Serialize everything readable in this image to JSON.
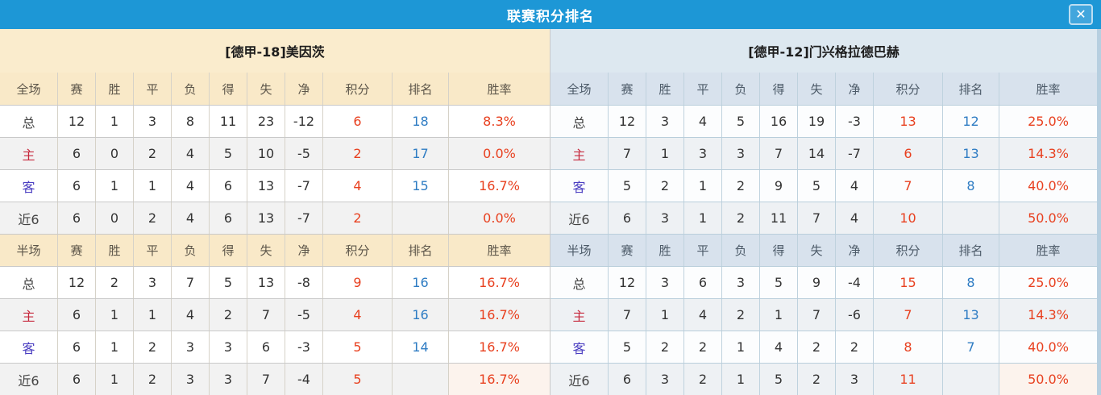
{
  "title_bar": {
    "title": "联赛积分排名",
    "close_icon": "✕"
  },
  "colors": {
    "titlebar_blue": "#1d97d6",
    "left_theme_cream": "#faeccd",
    "right_theme_blue": "#dde8f0",
    "points_red": "#e8401f",
    "rank_blue": "#2e7cc3",
    "home_label_red": "#c6283c",
    "away_label_blue": "#4a3ec1",
    "right_edge_strip": "#b7cfe0"
  },
  "tables": [
    {
      "team_header": "[德甲-18]美因茨",
      "sections": [
        {
          "header": [
            "全场",
            "赛",
            "胜",
            "平",
            "负",
            "得",
            "失",
            "净",
            "积分",
            "排名",
            "胜率"
          ],
          "rows": [
            {
              "label": "总",
              "label_style": "neutral",
              "cells": [
                "12",
                "1",
                "3",
                "8",
                "11",
                "23",
                "-12"
              ],
              "points": "6",
              "rank": "18",
              "win_rate": "8.3%"
            },
            {
              "label": "主",
              "label_style": "home",
              "cells": [
                "6",
                "0",
                "2",
                "4",
                "5",
                "10",
                "-5"
              ],
              "points": "2",
              "rank": "17",
              "win_rate": "0.0%"
            },
            {
              "label": "客",
              "label_style": "away",
              "cells": [
                "6",
                "1",
                "1",
                "4",
                "6",
                "13",
                "-7"
              ],
              "points": "4",
              "rank": "15",
              "win_rate": "16.7%"
            },
            {
              "label": "近6",
              "label_style": "neutral",
              "cells": [
                "6",
                "0",
                "2",
                "4",
                "6",
                "13",
                "-7"
              ],
              "points": "2",
              "rank": "",
              "win_rate": "0.0%"
            }
          ]
        },
        {
          "header": [
            "半场",
            "赛",
            "胜",
            "平",
            "负",
            "得",
            "失",
            "净",
            "积分",
            "排名",
            "胜率"
          ],
          "rows": [
            {
              "label": "总",
              "label_style": "neutral",
              "cells": [
                "12",
                "2",
                "3",
                "7",
                "5",
                "13",
                "-8"
              ],
              "points": "9",
              "rank": "16",
              "win_rate": "16.7%"
            },
            {
              "label": "主",
              "label_style": "home",
              "cells": [
                "6",
                "1",
                "1",
                "4",
                "2",
                "7",
                "-5"
              ],
              "points": "4",
              "rank": "16",
              "win_rate": "16.7%"
            },
            {
              "label": "客",
              "label_style": "away",
              "cells": [
                "6",
                "1",
                "2",
                "3",
                "3",
                "6",
                "-3"
              ],
              "points": "5",
              "rank": "14",
              "win_rate": "16.7%"
            },
            {
              "label": "近6",
              "label_style": "neutral",
              "cells": [
                "6",
                "1",
                "2",
                "3",
                "3",
                "7",
                "-4"
              ],
              "points": "5",
              "rank": "",
              "win_rate": "16.7%"
            }
          ]
        }
      ]
    },
    {
      "team_header": "[德甲-12]门兴格拉德巴赫",
      "sections": [
        {
          "header": [
            "全场",
            "赛",
            "胜",
            "平",
            "负",
            "得",
            "失",
            "净",
            "积分",
            "排名",
            "胜率"
          ],
          "rows": [
            {
              "label": "总",
              "label_style": "neutral",
              "cells": [
                "12",
                "3",
                "4",
                "5",
                "16",
                "19",
                "-3"
              ],
              "points": "13",
              "rank": "12",
              "win_rate": "25.0%"
            },
            {
              "label": "主",
              "label_style": "home",
              "cells": [
                "7",
                "1",
                "3",
                "3",
                "7",
                "14",
                "-7"
              ],
              "points": "6",
              "rank": "13",
              "win_rate": "14.3%"
            },
            {
              "label": "客",
              "label_style": "away",
              "cells": [
                "5",
                "2",
                "1",
                "2",
                "9",
                "5",
                "4"
              ],
              "points": "7",
              "rank": "8",
              "win_rate": "40.0%"
            },
            {
              "label": "近6",
              "label_style": "neutral",
              "cells": [
                "6",
                "3",
                "1",
                "2",
                "11",
                "7",
                "4"
              ],
              "points": "10",
              "rank": "",
              "win_rate": "50.0%"
            }
          ]
        },
        {
          "header": [
            "半场",
            "赛",
            "胜",
            "平",
            "负",
            "得",
            "失",
            "净",
            "积分",
            "排名",
            "胜率"
          ],
          "rows": [
            {
              "label": "总",
              "label_style": "neutral",
              "cells": [
                "12",
                "3",
                "6",
                "3",
                "5",
                "9",
                "-4"
              ],
              "points": "15",
              "rank": "8",
              "win_rate": "25.0%"
            },
            {
              "label": "主",
              "label_style": "home",
              "cells": [
                "7",
                "1",
                "4",
                "2",
                "1",
                "7",
                "-6"
              ],
              "points": "7",
              "rank": "13",
              "win_rate": "14.3%"
            },
            {
              "label": "客",
              "label_style": "away",
              "cells": [
                "5",
                "2",
                "2",
                "1",
                "4",
                "2",
                "2"
              ],
              "points": "8",
              "rank": "7",
              "win_rate": "40.0%"
            },
            {
              "label": "近6",
              "label_style": "neutral",
              "cells": [
                "6",
                "3",
                "2",
                "1",
                "5",
                "2",
                "3"
              ],
              "points": "11",
              "rank": "",
              "win_rate": "50.0%"
            }
          ]
        }
      ]
    }
  ]
}
